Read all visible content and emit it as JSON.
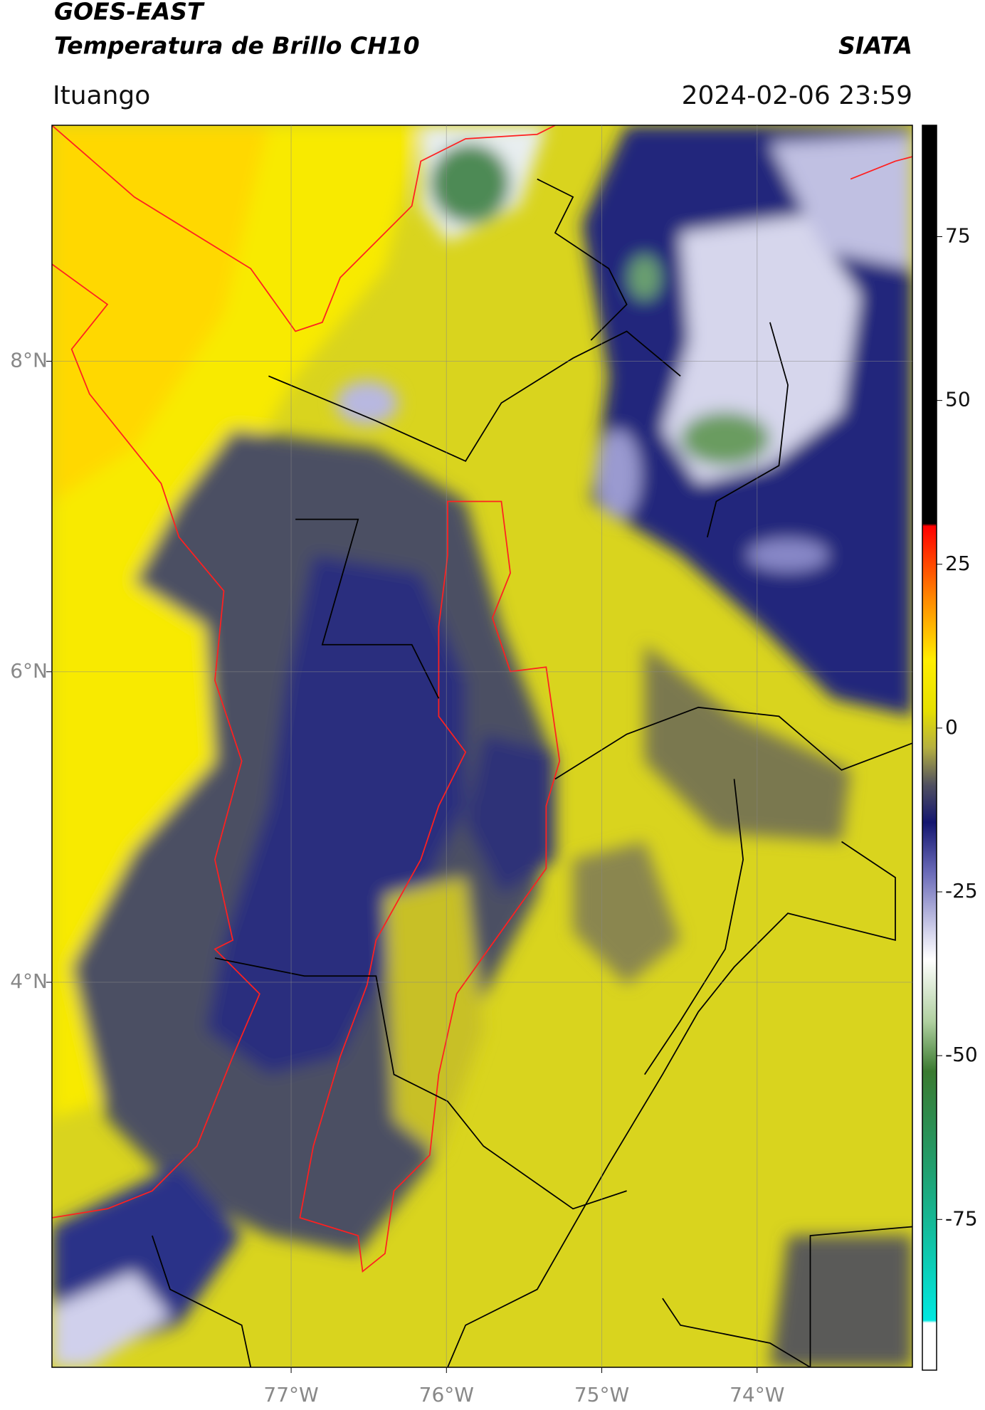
{
  "header": {
    "source": "GOES-EAST",
    "product": "Temperatura de Brillo CH10",
    "agency": "SIATA",
    "location": "Ituango",
    "datetime": "2024-02-06 23:59"
  },
  "map": {
    "xlim": [
      -78.54,
      -73.0
    ],
    "ylim": [
      1.52,
      9.52
    ],
    "xticks": [
      {
        "value": -77,
        "label": "77°W"
      },
      {
        "value": -76,
        "label": "76°W"
      },
      {
        "value": -75,
        "label": "75°W"
      },
      {
        "value": -74,
        "label": "74°W"
      }
    ],
    "yticks": [
      {
        "value": 8,
        "label": "8°N"
      },
      {
        "value": 6,
        "label": "6°N"
      },
      {
        "value": 4,
        "label": "4°N"
      }
    ],
    "grid": true
  },
  "colorbar": {
    "lim": [
      -98,
      92
    ],
    "ticks": [
      75,
      50,
      25,
      0,
      -25,
      -50,
      -75
    ]
  }
}
